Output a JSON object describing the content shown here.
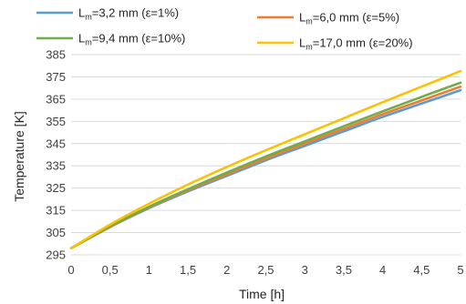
{
  "chart_data": {
    "type": "line",
    "xlabel": "Time [h]",
    "ylabel": "Temperature [K]",
    "xlim": [
      0,
      5
    ],
    "ylim": [
      295,
      385
    ],
    "x_ticks": [
      "0",
      "0,5",
      "1",
      "1,5",
      "2",
      "2,5",
      "3",
      "3,5",
      "4",
      "4,5",
      "5"
    ],
    "y_ticks": [
      "295",
      "305",
      "315",
      "325",
      "335",
      "345",
      "355",
      "365",
      "375",
      "385"
    ],
    "grid": "horizontal",
    "legend_position": "top",
    "x": [
      0,
      0.5,
      1,
      1.5,
      2,
      2.5,
      3,
      3.5,
      4,
      4.5,
      5
    ],
    "series": [
      {
        "name_main": "L",
        "name_sub": "m",
        "name_rest": "=3,2 mm (ε=1%)",
        "color": "#5B9BD5",
        "values": [
          298,
          307.5,
          316,
          323.5,
          330.5,
          337.5,
          344,
          350.5,
          357,
          363,
          369
        ]
      },
      {
        "name_main": "L",
        "name_sub": "m",
        "name_rest": "=6,0 mm (ε=5%)",
        "color": "#ED7D31",
        "values": [
          298,
          307.6,
          316.3,
          324,
          331.2,
          338.3,
          345,
          351.6,
          358.2,
          364.4,
          370.6
        ]
      },
      {
        "name_main": "L",
        "name_sub": "m",
        "name_rest": "=9,4 mm (ε=10%)",
        "color": "#70AD47",
        "values": [
          298,
          307.8,
          316.6,
          324.5,
          332,
          339.2,
          346,
          352.8,
          359.5,
          366,
          372.4
        ]
      },
      {
        "name_main": "L",
        "name_sub": "m",
        "name_rest": "=17,0 mm (ε=20%)",
        "color": "#FFC000",
        "values": [
          298,
          308.6,
          318,
          326.6,
          334.5,
          342,
          349.2,
          356.4,
          363.6,
          370.6,
          377.6
        ]
      }
    ]
  }
}
